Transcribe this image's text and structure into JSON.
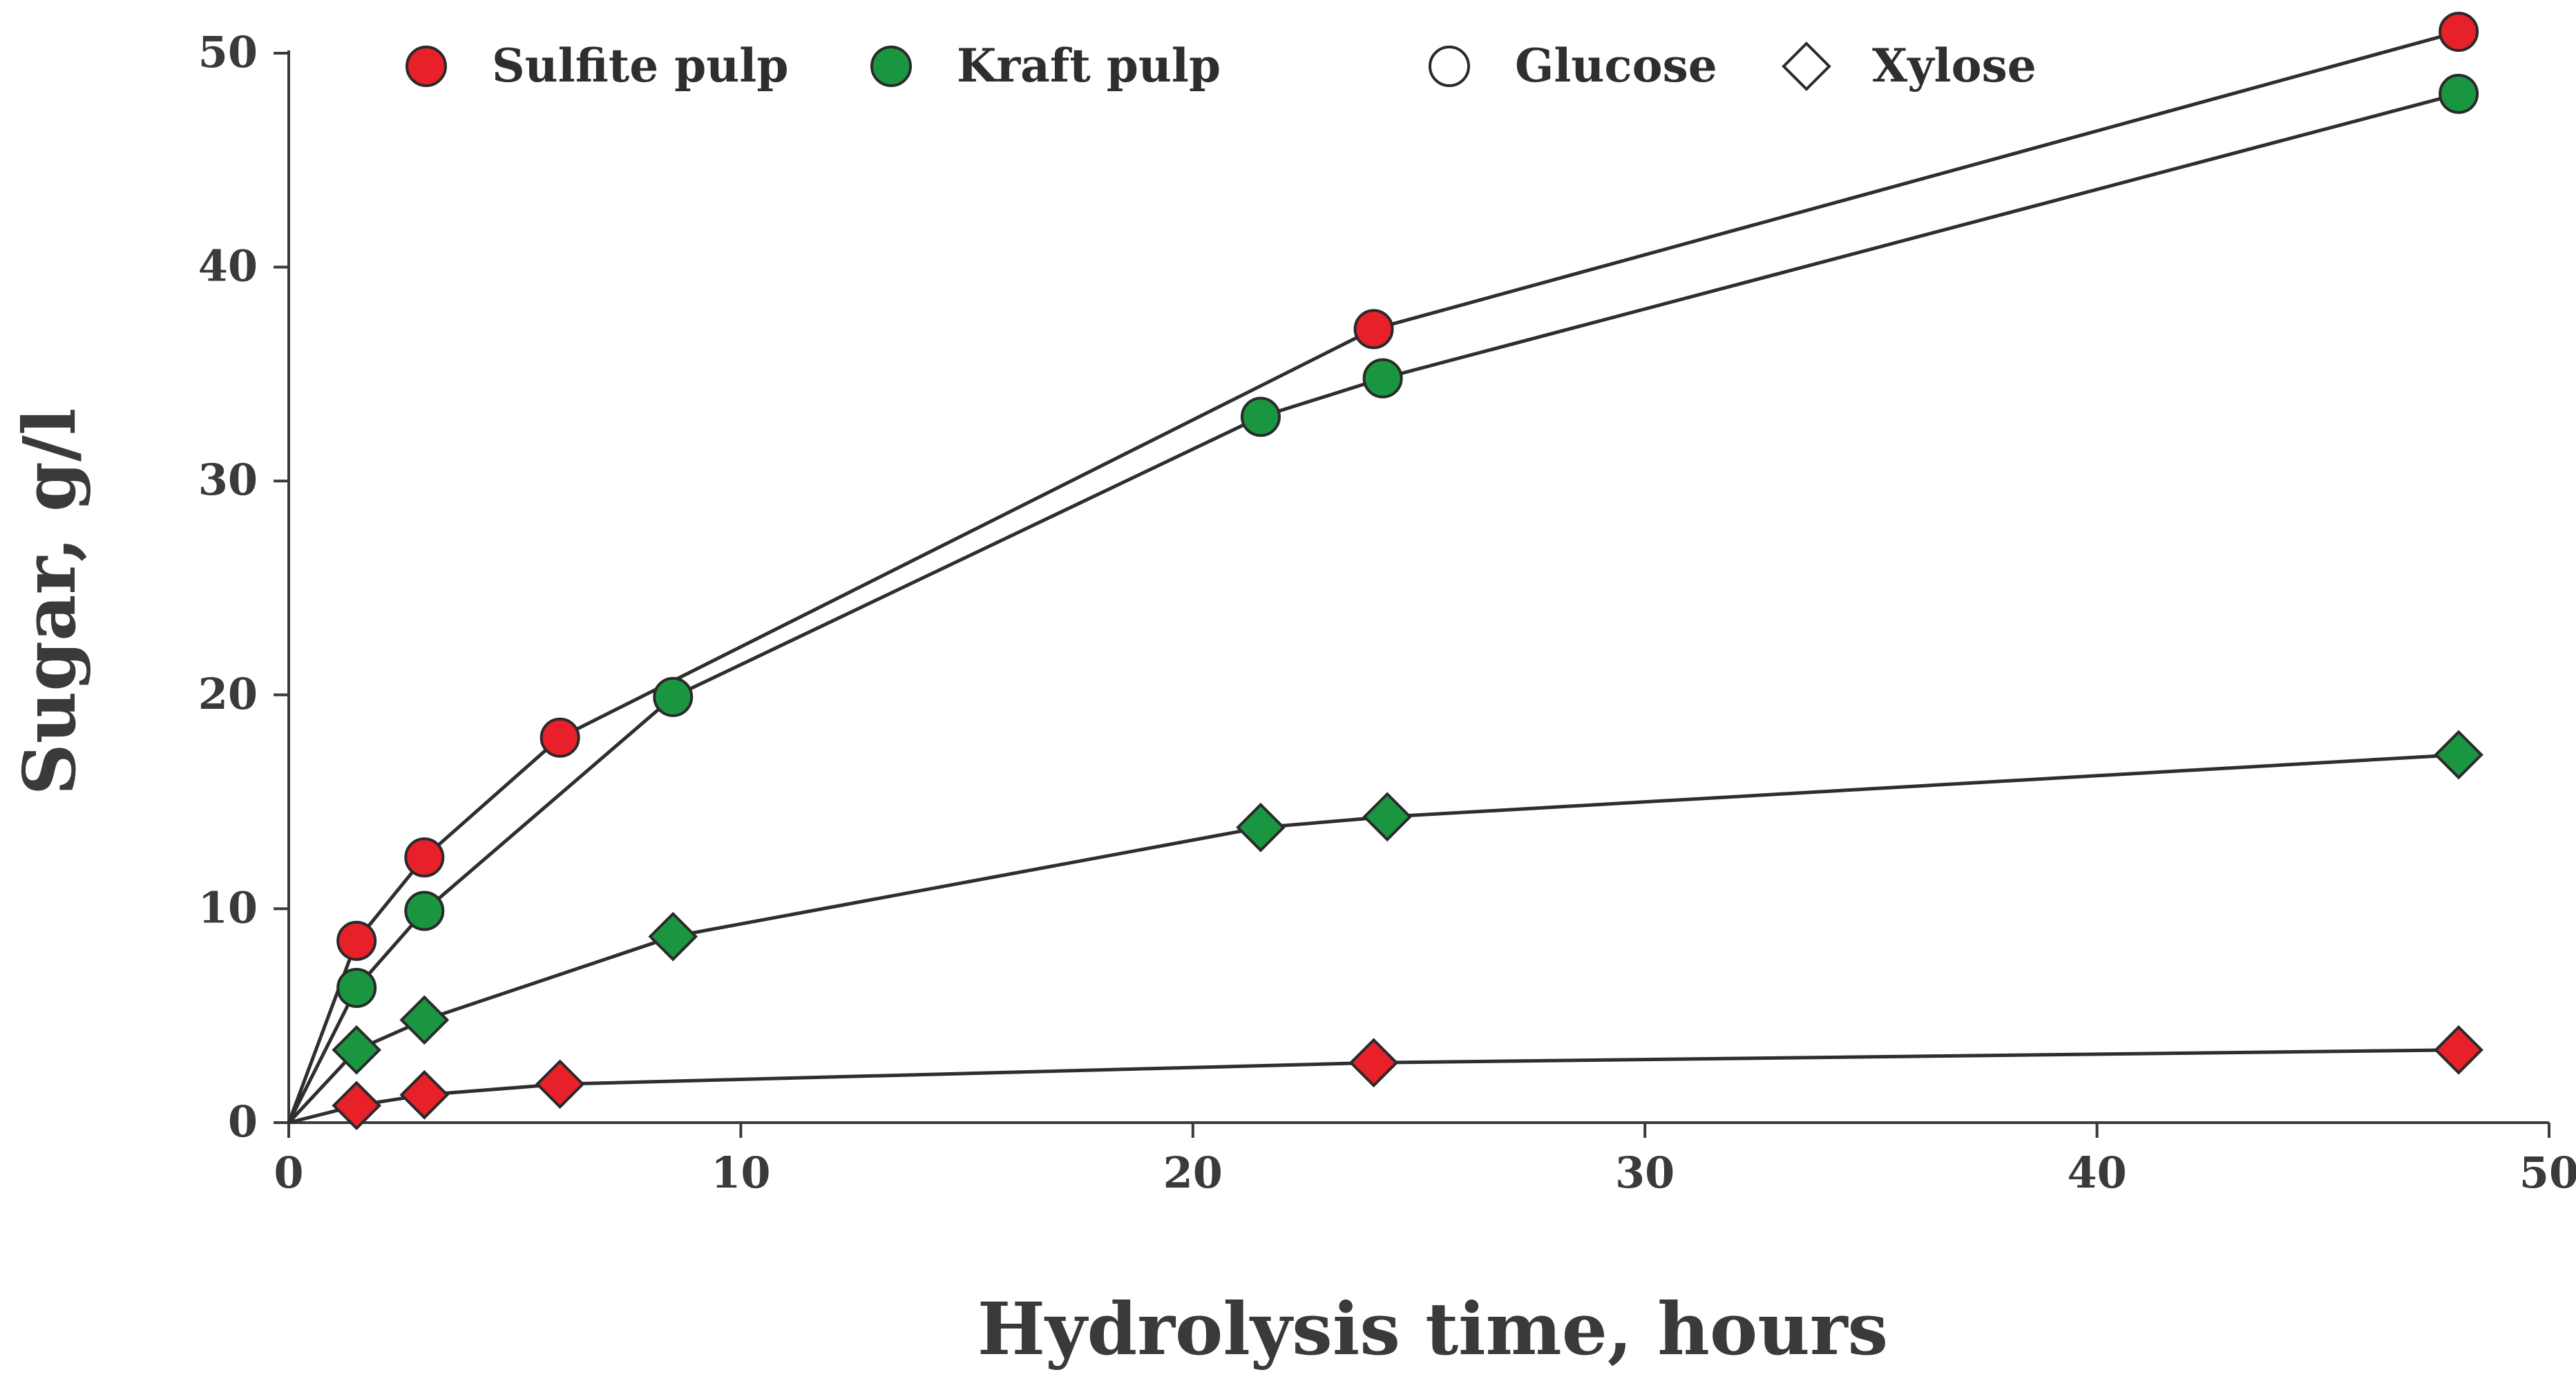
{
  "chart_data": {
    "type": "line",
    "title": "",
    "xlabel": "Hydrolysis time, hours",
    "ylabel": "Sugar, g/l",
    "xlim": [
      0,
      50
    ],
    "ylim": [
      0,
      50
    ],
    "xticks": [
      0,
      10,
      20,
      30,
      40,
      50
    ],
    "yticks": [
      0,
      10,
      20,
      30,
      40,
      50
    ],
    "xtick_labels": [
      "0",
      "10",
      "20",
      "30",
      "40",
      "50"
    ],
    "ytick_labels": [
      "0",
      "10",
      "20",
      "30",
      "40",
      "50"
    ],
    "grid": false,
    "legend_position": "top",
    "legend": [
      {
        "label": "Sulfite pulp",
        "shape": "circle",
        "color": "#e8202a"
      },
      {
        "label": "Kraft pulp",
        "shape": "circle",
        "color": "#1a9640"
      },
      {
        "label": "Glucose",
        "shape": "circle",
        "color": "#ffffff"
      },
      {
        "label": "Xylose",
        "shape": "diamond",
        "color": "#ffffff"
      }
    ],
    "series": [
      {
        "name": "Sulfite pulp glucose",
        "pulp": "Sulfite pulp",
        "sugar": "Glucose",
        "marker": "circle",
        "color": "#e8202a",
        "x": [
          0,
          1.5,
          3,
          6,
          24,
          48
        ],
        "y": [
          0,
          8.5,
          12.4,
          18,
          37.1,
          51
        ]
      },
      {
        "name": "Kraft pulp glucose",
        "pulp": "Kraft pulp",
        "sugar": "Glucose",
        "marker": "circle",
        "color": "#1a9640",
        "x": [
          0,
          1.5,
          3,
          8.5,
          21.5,
          24.2,
          48
        ],
        "y": [
          0,
          6.3,
          9.9,
          19.9,
          33,
          34.8,
          48.1
        ]
      },
      {
        "name": "Kraft pulp xylose",
        "pulp": "Kraft pulp",
        "sugar": "Xylose",
        "marker": "diamond",
        "color": "#1a9640",
        "x": [
          0,
          1.5,
          3,
          8.5,
          21.5,
          24.3,
          48
        ],
        "y": [
          0,
          3.4,
          4.8,
          8.7,
          13.8,
          14.3,
          17.2
        ]
      },
      {
        "name": "Sulfite pulp xylose",
        "pulp": "Sulfite pulp",
        "sugar": "Xylose",
        "marker": "diamond",
        "color": "#e8202a",
        "x": [
          0,
          1.5,
          3,
          6,
          24,
          48
        ],
        "y": [
          0,
          0.8,
          1.3,
          1.8,
          2.8,
          3.4
        ]
      }
    ]
  }
}
